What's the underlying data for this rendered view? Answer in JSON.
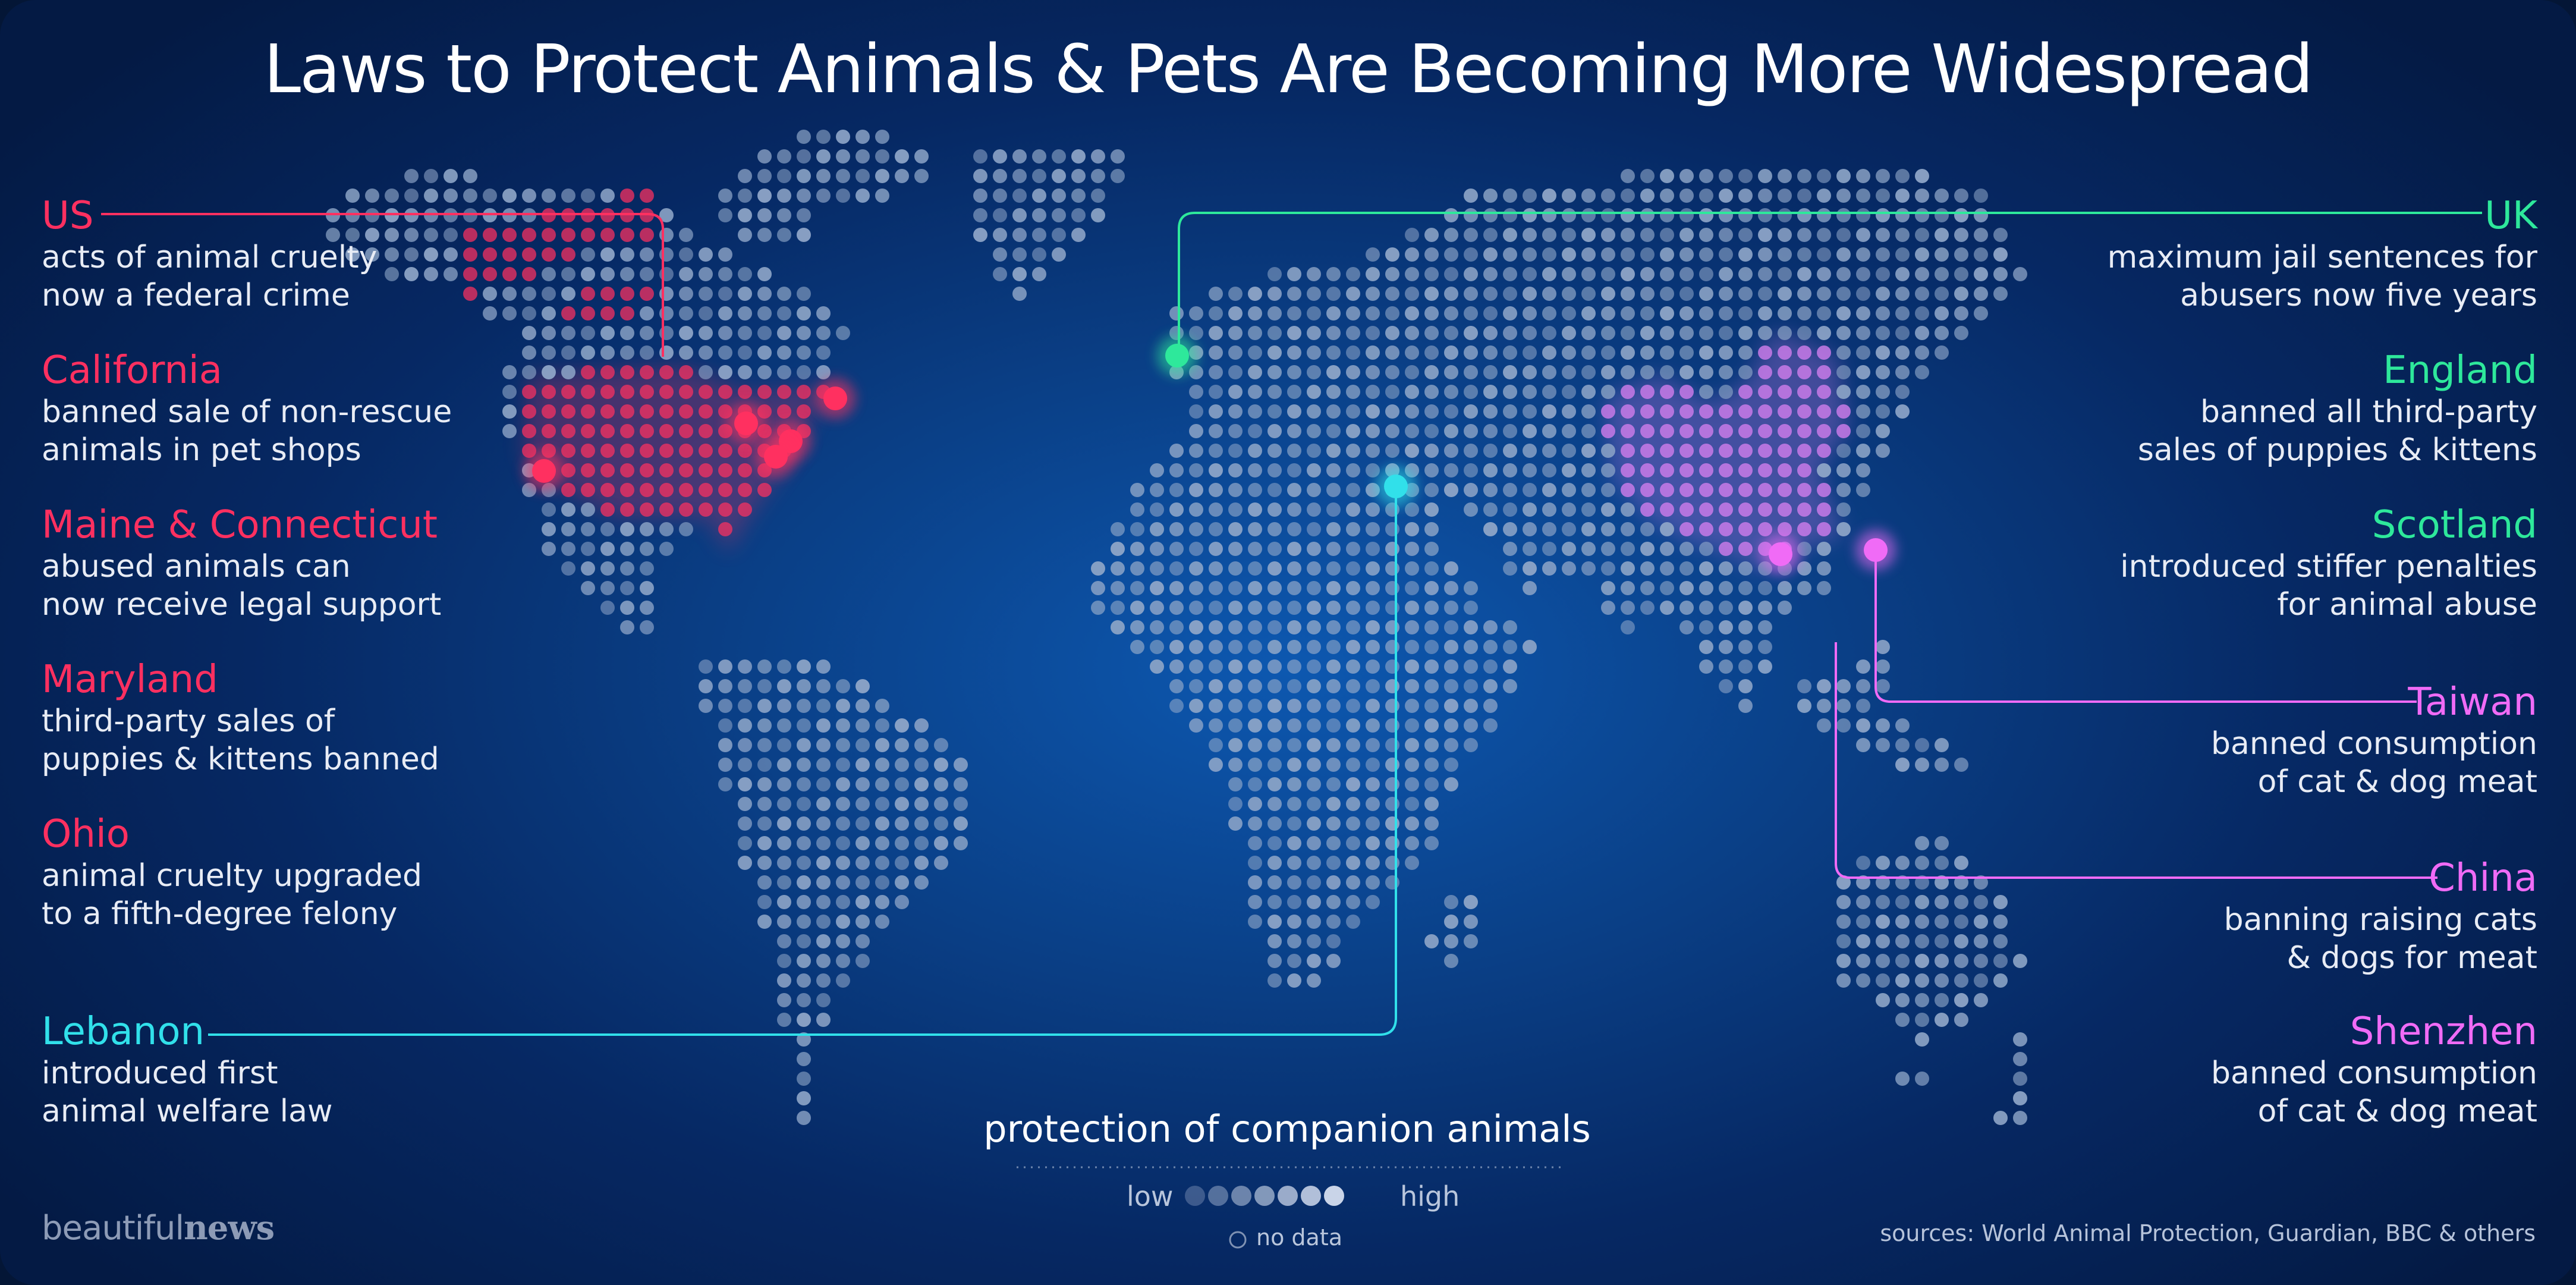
{
  "title": "Laws to Protect Animals & Pets Are Becoming More Widespread",
  "left_labels": [
    {
      "name": "US",
      "desc1": "acts of animal cruelty",
      "desc2": "now a federal crime"
    },
    {
      "name": "California",
      "desc1": "banned sale of non-rescue",
      "desc2": "animals in pet shops"
    },
    {
      "name": "Maine & Connecticut",
      "desc1": "abused animals can",
      "desc2": "now receive legal support"
    },
    {
      "name": "Maryland",
      "desc1": "third-party sales of",
      "desc2": "puppies & kittens banned"
    },
    {
      "name": "Ohio",
      "desc1": "animal cruelty upgraded",
      "desc2": "to a fifth-degree felony"
    },
    {
      "name": "Lebanon",
      "desc1": "introduced first",
      "desc2": "animal welfare law"
    }
  ],
  "right_labels": [
    {
      "name": "UK",
      "desc1": "maximum jail sentences for",
      "desc2": "abusers now five years"
    },
    {
      "name": "England",
      "desc1": "banned all third-party",
      "desc2": "sales of puppies & kittens"
    },
    {
      "name": "Scotland",
      "desc1": "introduced stiffer penalties",
      "desc2": "for animal abuse"
    },
    {
      "name": "Taiwan",
      "desc1": "banned consumption",
      "desc2": "of cat & dog meat"
    },
    {
      "name": "China",
      "desc1": "banning raising cats",
      "desc2": "& dogs for meat"
    },
    {
      "name": "Shenzhen",
      "desc1": "banned consumption",
      "desc2": "of cat  & dog meat"
    }
  ],
  "legend": {
    "title": "protection of companion animals",
    "low": "low",
    "high": "high",
    "no_data": "no data",
    "levels": 7
  },
  "brand": {
    "light": "beautiful",
    "bold": "news"
  },
  "sources": "sources: World Animal Protection, Guardian, BBC & others",
  "colors": {
    "us_highlight": "#ff3060",
    "lebanon_highlight": "#31e0ea",
    "uk_highlight": "#2ee89b",
    "china_highlight": "#c87ae8",
    "land_dot": "#8fa6c8"
  }
}
